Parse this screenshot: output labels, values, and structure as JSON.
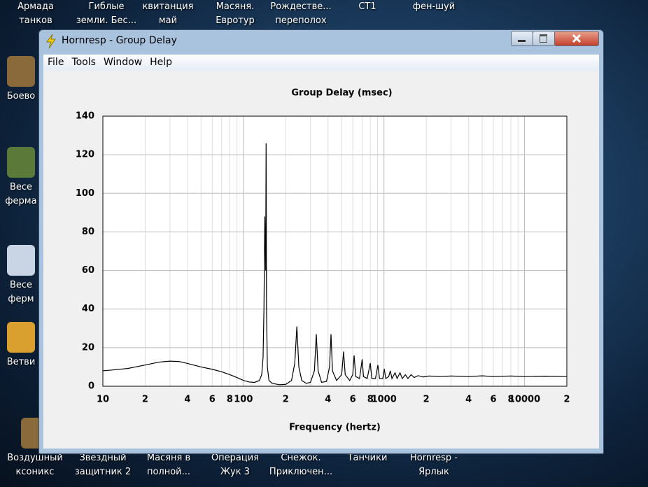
{
  "desktop": {
    "top_icons": [
      [
        "Армада",
        "танков"
      ],
      [
        "Гиблые",
        "земли. Бес..."
      ],
      [
        "квитанция",
        "май"
      ],
      [
        "Масяня.",
        "Евротур"
      ],
      [
        "Рождестве...",
        "переполох"
      ],
      [
        "СТ1"
      ],
      [
        "фен-шуй"
      ]
    ],
    "left_icons": [
      [
        "Боево"
      ],
      [
        "Весе",
        "ферма"
      ],
      [
        "Весе",
        "ферм"
      ],
      [
        "Ветви"
      ]
    ],
    "bottom_icons": [
      [
        "Воздушный",
        "ксоникс"
      ],
      [
        "Звездный",
        "защитник 2"
      ],
      [
        "Масяня в",
        "полной..."
      ],
      [
        "Операция",
        "Жук 3"
      ],
      [
        "Снежок.",
        "Приключен..."
      ],
      [
        "Танчики"
      ],
      [
        "Hornresp -",
        "Ярлык"
      ]
    ]
  },
  "window": {
    "title": "Hornresp - Group Delay",
    "menu": [
      "File",
      "Tools",
      "Window",
      "Help"
    ]
  },
  "chart_data": {
    "type": "line",
    "title": "Group Delay (msec)",
    "x_label": "Frequency (hertz)",
    "x_scale": "log",
    "xlim": [
      10,
      20000
    ],
    "ylim": [
      0,
      140
    ],
    "yticks": [
      0,
      20,
      40,
      60,
      80,
      100,
      120,
      140
    ],
    "xticks": [
      10,
      {
        "value": 20,
        "label": "2"
      },
      {
        "value": 40,
        "label": "4"
      },
      {
        "value": 60,
        "label": "6"
      },
      {
        "value": 80,
        "label": "8"
      },
      100,
      {
        "value": 200,
        "label": "2"
      },
      {
        "value": 400,
        "label": "4"
      },
      {
        "value": 600,
        "label": "6"
      },
      {
        "value": 800,
        "label": "8"
      },
      1000,
      {
        "value": 2000,
        "label": "2"
      },
      {
        "value": 4000,
        "label": "4"
      },
      {
        "value": 6000,
        "label": "6"
      },
      {
        "value": 8000,
        "label": "8"
      },
      10000,
      {
        "value": 20000,
        "label": "2"
      }
    ],
    "x_minor_grid": [
      30,
      50,
      70,
      90,
      300,
      500,
      700,
      900,
      3000,
      5000,
      7000,
      9000
    ],
    "grid": true,
    "color": "#000000",
    "x": [
      10,
      12,
      15,
      20,
      25,
      30,
      35,
      40,
      50,
      60,
      70,
      80,
      90,
      100,
      110,
      120,
      130,
      135,
      138,
      140,
      142,
      144,
      145,
      146,
      148,
      152,
      160,
      180,
      200,
      220,
      232,
      240,
      248,
      260,
      280,
      300,
      320,
      330,
      340,
      360,
      390,
      410,
      420,
      430,
      460,
      500,
      516,
      530,
      570,
      600,
      613,
      630,
      670,
      700,
      715,
      760,
      799,
      820,
      870,
      905,
      930,
      980,
      1005,
      1030,
      1080,
      1110,
      1140,
      1200,
      1240,
      1300,
      1350,
      1420,
      1480,
      1560,
      1640,
      1750,
      1900,
      2100,
      2500,
      3000,
      4000,
      5000,
      6000,
      8000,
      10000,
      14000,
      20000
    ],
    "values": [
      8,
      8.5,
      9.2,
      11,
      12.5,
      13,
      12.8,
      11.8,
      10,
      8.8,
      7.5,
      6,
      4.5,
      3,
      2.2,
      2,
      3,
      6,
      15,
      40,
      88,
      60,
      126,
      40,
      10,
      3,
      1.5,
      0.8,
      1,
      3,
      12,
      31,
      10,
      3,
      1.5,
      2,
      8,
      27,
      8,
      2,
      2.5,
      10,
      27,
      8,
      3,
      6,
      18,
      6,
      3,
      6,
      16,
      5,
      4,
      14,
      5,
      4,
      12,
      4,
      4,
      11,
      4,
      4,
      9,
      4,
      5,
      8,
      4,
      7,
      4,
      7,
      4,
      6,
      4,
      6,
      4.5,
      5.5,
      4.8,
      5.3,
      5,
      5.3,
      5,
      5.4,
      5,
      5.3,
      5,
      5.2,
      5
    ]
  }
}
